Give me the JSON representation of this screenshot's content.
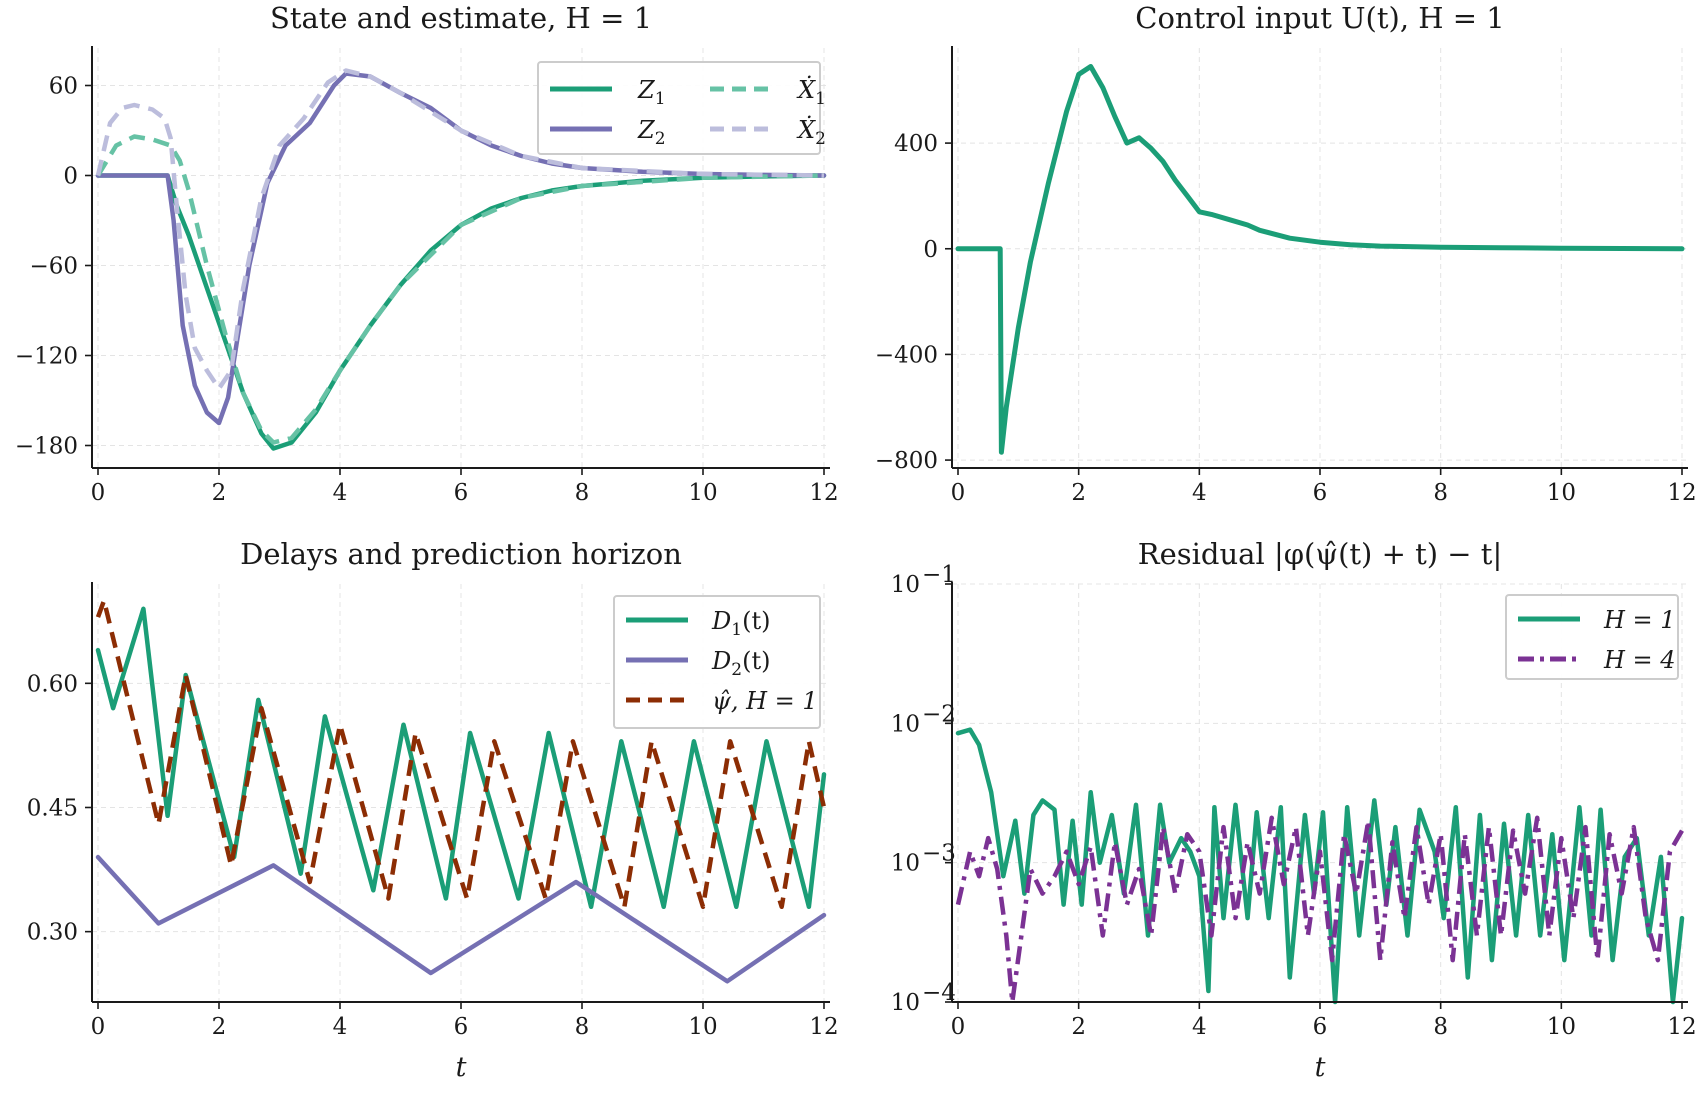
{
  "colors": {
    "Z1": "#1b9e77",
    "Z2": "#7570b3",
    "Z1hat": "#66c2a5",
    "Z2hat": "#bcbddc",
    "U": "#1b9e77",
    "D1": "#1b9e77",
    "D2": "#7570b3",
    "psi": "#8c2d04",
    "H1": "#1b9e77",
    "H4": "#7b3294"
  },
  "chart_data": [
    {
      "type": "line",
      "title": "State and estimate, H = 1",
      "xlabel": "",
      "ylabel": "",
      "xlim": [
        0,
        12
      ],
      "ylim": [
        -195,
        85
      ],
      "xticks": [
        0,
        2,
        4,
        6,
        8,
        10,
        12
      ],
      "yticks": [
        60,
        0,
        -60,
        -120,
        -180
      ],
      "ytick_labels": [
        "60",
        "0",
        "−60",
        "−120",
        "−180"
      ],
      "grid": true,
      "legend_position": "top-right",
      "series": [
        {
          "name": "Z1",
          "style": "solid",
          "color_key": "Z1",
          "x": [
            0,
            1.15,
            1.3,
            1.5,
            1.8,
            2.1,
            2.4,
            2.7,
            2.9,
            3.2,
            3.6,
            4.0,
            4.5,
            5.0,
            5.5,
            6.0,
            6.5,
            7.0,
            7.5,
            8.0,
            9.0,
            10.0,
            11.0,
            12.0
          ],
          "y": [
            0,
            0,
            -20,
            -40,
            -75,
            -110,
            -145,
            -172,
            -182,
            -178,
            -158,
            -130,
            -100,
            -73,
            -50,
            -33,
            -22,
            -15,
            -10,
            -7,
            -3.5,
            -1.5,
            -0.6,
            0
          ]
        },
        {
          "name": "Z2",
          "style": "solid",
          "color_key": "Z2",
          "x": [
            0,
            1.15,
            1.25,
            1.4,
            1.6,
            1.8,
            2.0,
            2.15,
            2.3,
            2.5,
            2.8,
            3.1,
            3.5,
            3.9,
            4.1,
            4.5,
            5.0,
            5.5,
            6.0,
            6.5,
            7.0,
            7.5,
            8.0,
            9.0,
            10.0,
            11.0,
            12.0
          ],
          "y": [
            0,
            0,
            -30,
            -100,
            -140,
            -158,
            -165,
            -148,
            -110,
            -60,
            -5,
            20,
            35,
            60,
            68,
            66,
            55,
            45,
            30,
            20,
            13,
            8,
            5,
            2.5,
            1,
            0.4,
            0
          ]
        },
        {
          "name": "Ẋ1",
          "style": "dashed",
          "color_key": "Z1hat",
          "x": [
            0,
            0.3,
            0.6,
            0.9,
            1.2,
            1.35,
            1.5,
            1.8,
            2.1,
            2.4,
            2.7,
            2.9,
            3.2,
            3.6,
            4.0,
            4.5,
            5.0,
            6.0,
            7.0,
            8.0,
            10.0,
            12.0
          ],
          "y": [
            0,
            20,
            26,
            24,
            20,
            10,
            -10,
            -60,
            -105,
            -145,
            -170,
            -178,
            -175,
            -156,
            -130,
            -100,
            -73,
            -33,
            -15,
            -7,
            -1.5,
            0
          ]
        },
        {
          "name": "Ẋ2",
          "style": "dashed",
          "color_key": "Z2hat",
          "x": [
            0,
            0.2,
            0.4,
            0.6,
            0.9,
            1.1,
            1.2,
            1.3,
            1.45,
            1.6,
            1.8,
            2.0,
            2.2,
            2.4,
            2.7,
            3.0,
            3.4,
            3.8,
            4.1,
            4.5,
            5.0,
            6.0,
            7.0,
            8.0,
            10.0,
            12.0
          ],
          "y": [
            0,
            35,
            45,
            47,
            44,
            38,
            25,
            -20,
            -80,
            -115,
            -130,
            -142,
            -130,
            -75,
            -15,
            20,
            38,
            62,
            70,
            66,
            55,
            30,
            13,
            5,
            1,
            0
          ]
        }
      ]
    },
    {
      "type": "line",
      "title": "Control input U(t), H = 1",
      "xlabel": "",
      "ylabel": "",
      "xlim": [
        0,
        12
      ],
      "ylim": [
        -830,
        760
      ],
      "xticks": [
        0,
        2,
        4,
        6,
        8,
        10,
        12
      ],
      "yticks": [
        400,
        0,
        -400,
        -800
      ],
      "ytick_labels": [
        "400",
        "0",
        "−400",
        "−800"
      ],
      "grid": true,
      "series": [
        {
          "name": "U(t)",
          "style": "solid",
          "color_key": "U",
          "x": [
            0,
            0.7,
            0.72,
            0.8,
            1.0,
            1.2,
            1.5,
            1.8,
            2.0,
            2.2,
            2.4,
            2.6,
            2.8,
            3.0,
            3.2,
            3.4,
            3.6,
            3.8,
            4.0,
            4.2,
            4.5,
            4.8,
            5.0,
            5.5,
            6.0,
            6.5,
            7.0,
            8.0,
            9.0,
            10.0,
            11.0,
            12.0
          ],
          "y": [
            0,
            0,
            -770,
            -600,
            -300,
            -50,
            250,
            520,
            660,
            690,
            610,
            500,
            400,
            420,
            380,
            330,
            260,
            200,
            140,
            130,
            110,
            90,
            70,
            40,
            25,
            15,
            10,
            6,
            4,
            2,
            1,
            0
          ]
        }
      ]
    },
    {
      "type": "line",
      "title": "Delays and prediction horizon",
      "xlabel": "t",
      "ylabel": "",
      "xlim": [
        0,
        12
      ],
      "ylim": [
        0.215,
        0.72
      ],
      "xticks": [
        0,
        2,
        4,
        6,
        8,
        10,
        12
      ],
      "yticks": [
        0.6,
        0.45,
        0.3
      ],
      "ytick_labels": [
        "0.60",
        "0.45",
        "0.30"
      ],
      "grid": true,
      "legend_position": "top-right",
      "series": [
        {
          "name": "D1(t)",
          "style": "solid",
          "color_key": "D1",
          "x": [
            0,
            0.25,
            0.75,
            1.15,
            1.45,
            2.25,
            2.65,
            3.35,
            3.75,
            4.55,
            5.05,
            5.75,
            6.15,
            6.95,
            7.45,
            8.15,
            8.65,
            9.35,
            9.85,
            10.55,
            11.05,
            11.75,
            12.0
          ],
          "y": [
            0.64,
            0.57,
            0.69,
            0.44,
            0.61,
            0.39,
            0.58,
            0.37,
            0.56,
            0.35,
            0.55,
            0.34,
            0.54,
            0.34,
            0.54,
            0.33,
            0.53,
            0.33,
            0.53,
            0.33,
            0.53,
            0.33,
            0.49
          ]
        },
        {
          "name": "D2(t)",
          "style": "solid",
          "color_key": "D2",
          "x": [
            0,
            1.0,
            2.9,
            5.5,
            7.9,
            10.4,
            12.0
          ],
          "y": [
            0.39,
            0.31,
            0.38,
            0.25,
            0.36,
            0.24,
            0.32
          ]
        },
        {
          "name": "ψ̂, H = 1",
          "style": "dashed",
          "color_key": "psi",
          "x": [
            0,
            0.1,
            1.0,
            1.45,
            2.2,
            2.7,
            3.5,
            4.0,
            4.8,
            5.25,
            6.1,
            6.55,
            7.4,
            7.85,
            8.7,
            9.15,
            10.0,
            10.45,
            11.3,
            11.75,
            12.0
          ],
          "y": [
            0.68,
            0.7,
            0.43,
            0.61,
            0.38,
            0.57,
            0.36,
            0.55,
            0.34,
            0.54,
            0.34,
            0.53,
            0.34,
            0.53,
            0.33,
            0.53,
            0.33,
            0.53,
            0.33,
            0.53,
            0.45
          ]
        }
      ]
    },
    {
      "type": "line",
      "title": "Residual |φ(ψ̂(t) + t) − t|",
      "xlabel": "t",
      "ylabel": "",
      "xlim": [
        0,
        12
      ],
      "yscale": "log",
      "ylim": [
        0.0001,
        0.1
      ],
      "xticks": [
        0,
        2,
        4,
        6,
        8,
        10,
        12
      ],
      "yticks": [
        0.1,
        0.01,
        0.001,
        0.0001
      ],
      "ytick_labels": [
        "10",
        "10",
        "10",
        "10"
      ],
      "ytick_exponents": [
        "−1",
        "−2",
        "−3",
        "−4"
      ],
      "grid": true,
      "legend_position": "top-right",
      "series": [
        {
          "name": "H = 1",
          "style": "solid",
          "color_key": "H1",
          "x": [
            0,
            0.2,
            0.35,
            0.55,
            0.75,
            0.95,
            1.1,
            1.25,
            1.4,
            1.6,
            1.75,
            1.9,
            2.05,
            2.2,
            2.35,
            2.55,
            2.75,
            2.95,
            3.15,
            3.35,
            3.5,
            3.7,
            3.85,
            4.0,
            4.15,
            4.25,
            4.4,
            4.6,
            4.8,
            4.95,
            5.15,
            5.35,
            5.5,
            5.75,
            5.9,
            6.05,
            6.25,
            6.45,
            6.65,
            6.9,
            7.1,
            7.25,
            7.45,
            7.65,
            7.9,
            8.05,
            8.25,
            8.45,
            8.65,
            8.85,
            9.05,
            9.25,
            9.45,
            9.65,
            9.85,
            10.05,
            10.3,
            10.5,
            10.65,
            10.85,
            11.05,
            11.25,
            11.45,
            11.65,
            11.85,
            12.0
          ],
          "y": [
            0.0085,
            0.009,
            0.007,
            0.0032,
            0.0008,
            0.002,
            0.0006,
            0.0022,
            0.0028,
            0.0024,
            0.0005,
            0.002,
            0.0005,
            0.0032,
            0.001,
            0.0022,
            0.0006,
            0.0026,
            0.0003,
            0.0026,
            0.001,
            0.0015,
            0.0012,
            0.0008,
            0.00012,
            0.0025,
            0.0004,
            0.0026,
            0.0004,
            0.0023,
            0.0004,
            0.0025,
            0.00015,
            0.0022,
            0.0006,
            0.0023,
            0.0001,
            0.0025,
            0.0003,
            0.0028,
            0.0005,
            0.0018,
            0.0003,
            0.0024,
            0.0012,
            0.0004,
            0.0025,
            0.00015,
            0.0022,
            0.0002,
            0.0019,
            0.0003,
            0.0022,
            0.0003,
            0.0016,
            0.0002,
            0.0025,
            0.0003,
            0.0024,
            0.0002,
            0.0011,
            0.0015,
            0.0003,
            0.0011,
            0.0001,
            0.0004
          ]
        },
        {
          "name": "H = 4",
          "style": "dashdot",
          "color_key": "H4",
          "x": [
            0,
            0.2,
            0.35,
            0.5,
            0.65,
            0.8,
            0.9,
            1.05,
            1.2,
            1.4,
            1.6,
            1.8,
            2.0,
            2.2,
            2.4,
            2.6,
            2.8,
            3.0,
            3.2,
            3.4,
            3.6,
            3.8,
            4.0,
            4.2,
            4.4,
            4.6,
            4.8,
            5.0,
            5.2,
            5.4,
            5.6,
            5.8,
            6.0,
            6.2,
            6.4,
            6.6,
            6.8,
            7.0,
            7.2,
            7.4,
            7.6,
            7.8,
            8.0,
            8.2,
            8.4,
            8.6,
            8.8,
            9.0,
            9.2,
            9.4,
            9.6,
            9.8,
            10.0,
            10.2,
            10.4,
            10.6,
            10.8,
            11.0,
            11.2,
            11.4,
            11.6,
            11.8,
            12.0
          ],
          "y": [
            0.0005,
            0.0012,
            0.0008,
            0.0015,
            0.0009,
            0.0003,
            0.0001,
            0.0003,
            0.0009,
            0.0006,
            0.0008,
            0.0012,
            0.0007,
            0.0013,
            0.0003,
            0.0014,
            0.0005,
            0.0009,
            0.0003,
            0.0018,
            0.0006,
            0.0016,
            0.0012,
            0.0003,
            0.0018,
            0.0004,
            0.0014,
            0.0006,
            0.0021,
            0.0007,
            0.0018,
            0.0003,
            0.0012,
            0.0002,
            0.0016,
            0.0006,
            0.002,
            0.0002,
            0.0014,
            0.0004,
            0.0018,
            0.0005,
            0.0016,
            0.0002,
            0.0016,
            0.0003,
            0.0018,
            0.0003,
            0.0017,
            0.0006,
            0.0021,
            0.0003,
            0.0015,
            0.0004,
            0.0018,
            0.0002,
            0.0016,
            0.0006,
            0.0018,
            0.0004,
            0.0002,
            0.0012,
            0.0017
          ]
        }
      ]
    }
  ],
  "legends": [
    {
      "entries": [
        "Z",
        "Z",
        "Ẋ",
        "Ẋ"
      ],
      "subs": [
        "1",
        "2",
        "1",
        "2"
      ]
    },
    null,
    {
      "entries": [
        "D",
        "D",
        "ψ̂, H = 1"
      ],
      "subs": [
        "1",
        "2",
        ""
      ],
      "suffix": [
        "(t)",
        "(t)",
        ""
      ]
    },
    {
      "entries": [
        "H = 1",
        "H = 4"
      ]
    }
  ]
}
